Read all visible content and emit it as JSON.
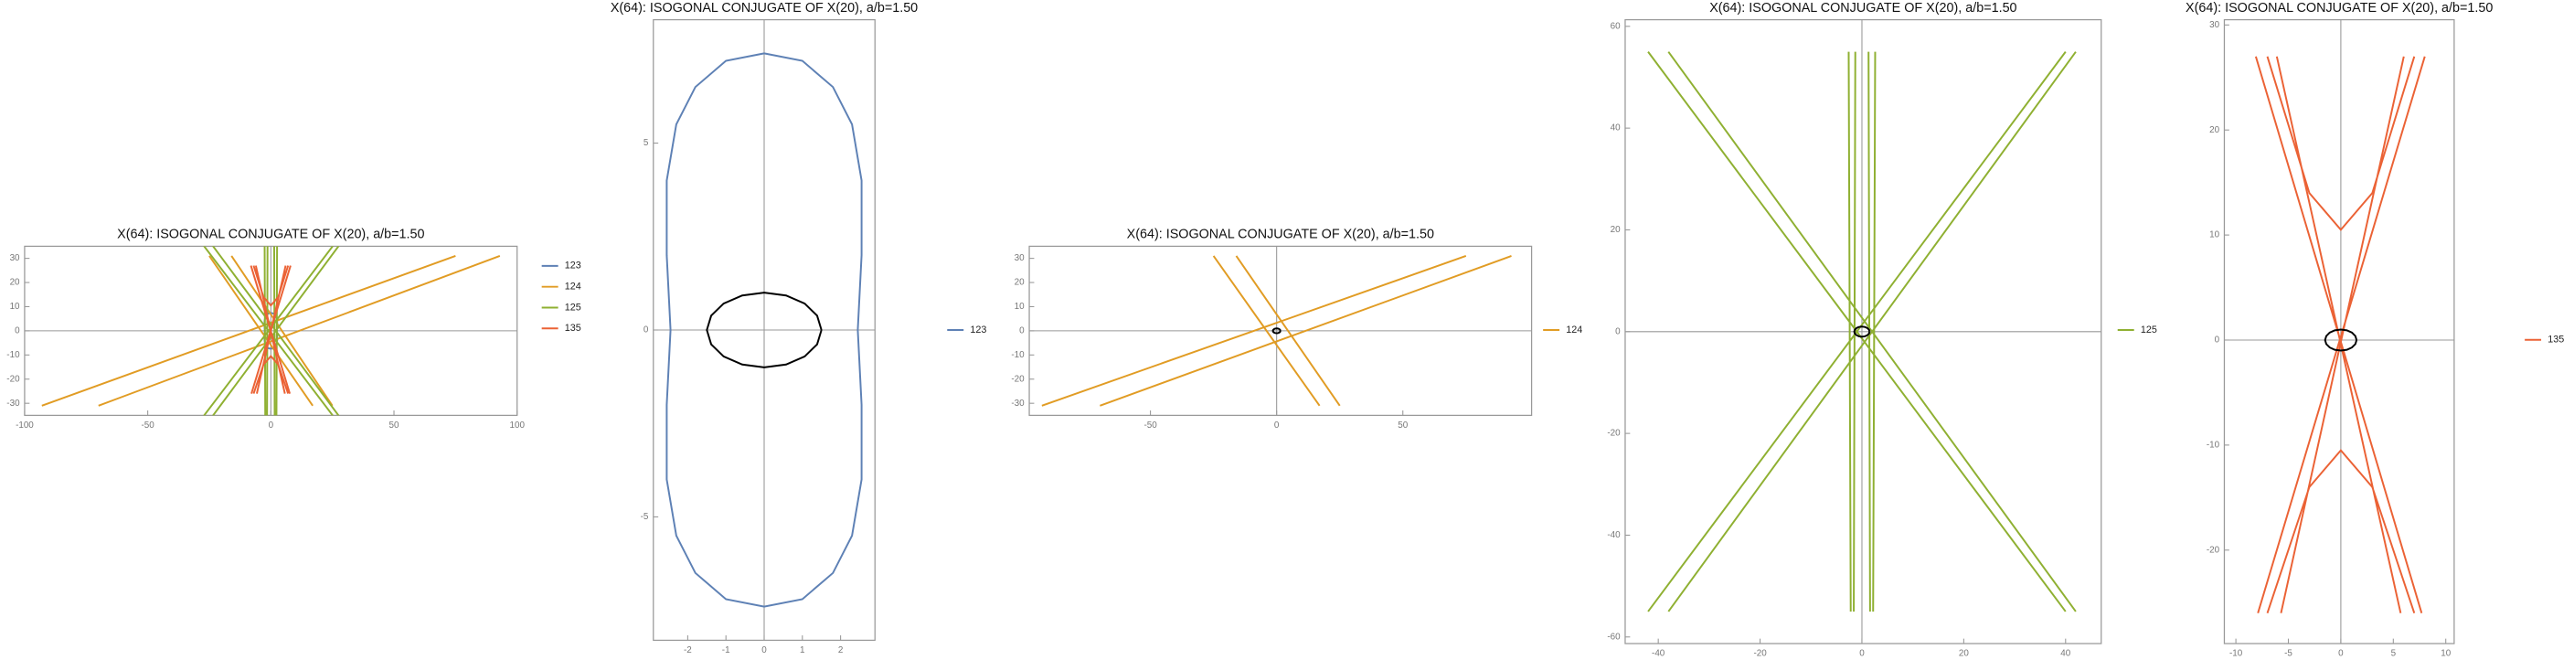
{
  "chart_data": [
    {
      "type": "line",
      "title": "X(64): ISOGONAL CONJUGATE OF X(20), a/b=1.50",
      "xlim": [
        -100,
        100
      ],
      "ylim": [
        -35,
        35
      ],
      "xticks": [
        -100,
        -50,
        0,
        50,
        100
      ],
      "yticks": [
        -30,
        -20,
        -10,
        0,
        10,
        20,
        30
      ],
      "series": [
        {
          "name": "123",
          "color": "#5e81b5",
          "x": [
            0,
            1,
            1.8,
            2.3,
            2.55,
            2.55,
            2.45,
            2.55,
            2.55,
            2.3,
            1.8,
            1,
            0,
            -1,
            -1.8,
            -2.3,
            -2.55,
            -2.55,
            -2.45,
            -2.55,
            -2.55,
            -2.3,
            -1.8,
            -1,
            0
          ],
          "values": [
            7.4,
            7.2,
            6.5,
            5.5,
            4,
            2,
            0,
            -2,
            -4,
            -5.5,
            -6.5,
            -7.2,
            -7.4,
            -7.2,
            -6.5,
            -5.5,
            -4,
            -2,
            0,
            2,
            4,
            5.5,
            6.5,
            7.2,
            7.4
          ]
        },
        {
          "name": "124",
          "color": "#e19c24",
          "x": [
            -93,
            75,
            null,
            -70,
            93,
            null,
            -25,
            17,
            null,
            -16,
            25
          ],
          "values": [
            -31,
            31,
            null,
            -31,
            31,
            null,
            31,
            -31,
            null,
            31,
            -31
          ]
        },
        {
          "name": "125",
          "color": "#8fb032",
          "x": [
            -42,
            40,
            null,
            -38,
            42,
            null,
            -42,
            40,
            null,
            -38,
            42,
            null,
            -2.6,
            -2.2,
            null,
            -1.3,
            -1.6,
            null,
            1.3,
            1.6,
            null,
            2.6,
            2.2
          ],
          "values": [
            55,
            -55,
            null,
            55,
            -55,
            null,
            -55,
            55,
            null,
            -55,
            55,
            null,
            55,
            -55,
            null,
            55,
            -55,
            null,
            55,
            -55,
            null,
            55,
            -55
          ]
        },
        {
          "name": "135",
          "color": "#eb6235",
          "x": [
            -8.1,
            7.7,
            null,
            -6.1,
            5.7,
            null,
            6,
            -5.7,
            null,
            8,
            -7.9,
            null,
            -7,
            -3,
            0,
            3,
            7,
            null,
            -7,
            -3,
            0,
            3,
            7
          ],
          "values": [
            27,
            -26,
            null,
            27,
            -26,
            null,
            27,
            -26,
            null,
            27,
            -26,
            null,
            27,
            14,
            10.5,
            14,
            27,
            null,
            -26,
            -14,
            -10.5,
            -14,
            -26
          ]
        }
      ]
    },
    {
      "type": "line",
      "title": "X(64): ISOGONAL CONJUGATE OF X(20), a/b=1.50",
      "xlim": [
        -2.9,
        2.9
      ],
      "ylim": [
        -8.3,
        8.3
      ],
      "xticks": [
        -2,
        -1,
        0,
        1,
        2
      ],
      "yticks": [
        -5,
        0,
        5
      ],
      "series": [
        {
          "name": "123",
          "color": "#5e81b5",
          "x": [
            0,
            1,
            1.8,
            2.3,
            2.55,
            2.55,
            2.45,
            2.55,
            2.55,
            2.3,
            1.8,
            1,
            0,
            -1,
            -1.8,
            -2.3,
            -2.55,
            -2.55,
            -2.45,
            -2.55,
            -2.55,
            -2.3,
            -1.8,
            -1,
            0
          ],
          "values": [
            7.4,
            7.2,
            6.5,
            5.5,
            4,
            2,
            0,
            -2,
            -4,
            -5.5,
            -6.5,
            -7.2,
            -7.4,
            -7.2,
            -6.5,
            -5.5,
            -4,
            -2,
            0,
            2,
            4,
            5.5,
            6.5,
            7.2,
            7.4
          ]
        },
        {
          "color": "#000000",
          "x": [
            1.5,
            1.386,
            1.061,
            0.574,
            0,
            -0.574,
            -1.061,
            -1.386,
            -1.5,
            -1.386,
            -1.061,
            -0.574,
            0,
            0.574,
            1.061,
            1.386,
            1.5
          ],
          "values": [
            0,
            0.383,
            0.707,
            0.924,
            1,
            0.924,
            0.707,
            0.383,
            0,
            -0.383,
            -0.707,
            -0.924,
            -1,
            -0.924,
            -0.707,
            -0.383,
            0
          ]
        }
      ]
    },
    {
      "type": "line",
      "title": "X(64): ISOGONAL CONJUGATE OF X(20), a/b=1.50",
      "xlim": [
        -98,
        101
      ],
      "ylim": [
        -35,
        35
      ],
      "xticks": [
        -50,
        0,
        50
      ],
      "yticks": [
        -30,
        -20,
        -10,
        0,
        10,
        20,
        30
      ],
      "series": [
        {
          "name": "124",
          "color": "#e19c24",
          "x": [
            -93,
            75,
            null,
            -70,
            93,
            null,
            -25,
            17,
            null,
            -16,
            25
          ],
          "values": [
            -31,
            31,
            null,
            -31,
            31,
            null,
            31,
            -31,
            null,
            31,
            -31
          ]
        },
        {
          "color": "#000000",
          "x": [
            1.5,
            1.386,
            1.061,
            0.574,
            0,
            -0.574,
            -1.061,
            -1.386,
            -1.5,
            -1.386,
            -1.061,
            -0.574,
            0,
            0.574,
            1.061,
            1.386,
            1.5
          ],
          "values": [
            0,
            0.383,
            0.707,
            0.924,
            1,
            0.924,
            0.707,
            0.383,
            0,
            -0.383,
            -0.707,
            -0.924,
            -1,
            -0.924,
            -0.707,
            -0.383,
            0
          ]
        }
      ]
    },
    {
      "type": "line",
      "title": "X(64): ISOGONAL CONJUGATE OF X(20), a/b=1.50",
      "xlim": [
        -46.5,
        47
      ],
      "ylim": [
        -61.3,
        61.3
      ],
      "xticks": [
        -40,
        -20,
        0,
        20,
        40
      ],
      "yticks": [
        -60,
        -40,
        -20,
        0,
        20,
        40,
        60
      ],
      "series": [
        {
          "name": "125",
          "color": "#8fb032",
          "x": [
            -42,
            40,
            null,
            -38,
            42,
            null,
            -42,
            40,
            null,
            -38,
            42,
            null,
            -2.6,
            -2.2,
            null,
            -1.3,
            -1.6,
            null,
            1.3,
            1.6,
            null,
            2.6,
            2.2
          ],
          "values": [
            55,
            -55,
            null,
            55,
            -55,
            null,
            -55,
            55,
            null,
            -55,
            55,
            null,
            55,
            -55,
            null,
            55,
            -55,
            null,
            55,
            -55,
            null,
            55,
            -55
          ]
        },
        {
          "color": "#000000",
          "x": [
            1.5,
            1.386,
            1.061,
            0.574,
            0,
            -0.574,
            -1.061,
            -1.386,
            -1.5,
            -1.386,
            -1.061,
            -0.574,
            0,
            0.574,
            1.061,
            1.386,
            1.5
          ],
          "values": [
            0,
            0.383,
            0.707,
            0.924,
            1,
            0.924,
            0.707,
            0.383,
            0,
            -0.383,
            -0.707,
            -0.924,
            -1,
            -0.924,
            -0.707,
            -0.383,
            0
          ]
        }
      ]
    },
    {
      "type": "line",
      "title": "X(64): ISOGONAL CONJUGATE OF X(20), a/b=1.50",
      "xlim": [
        -11.1,
        10.8
      ],
      "ylim": [
        -28.9,
        30.5
      ],
      "xticks": [
        -10,
        -5,
        0,
        5,
        10
      ],
      "yticks": [
        -20,
        -10,
        0,
        10,
        20,
        30
      ],
      "series": [
        {
          "name": "135",
          "color": "#eb6235",
          "x": [
            -8.1,
            7.7,
            null,
            -6.1,
            5.7,
            null,
            6,
            -5.7,
            null,
            8,
            -7.9,
            null,
            -7,
            -3,
            0,
            3,
            7,
            null,
            -7,
            -3,
            0,
            3,
            7
          ],
          "values": [
            27,
            -26,
            null,
            27,
            -26,
            null,
            27,
            -26,
            null,
            27,
            -26,
            null,
            27,
            14,
            10.5,
            14,
            27,
            null,
            -26,
            -14,
            -10.5,
            -14,
            -26
          ]
        },
        {
          "color": "#000000",
          "x": [
            1.5,
            1.386,
            1.061,
            0.574,
            0,
            -0.574,
            -1.061,
            -1.386,
            -1.5,
            -1.386,
            -1.061,
            -0.574,
            0,
            0.574,
            1.061,
            1.386,
            1.5
          ],
          "values": [
            0,
            0.383,
            0.707,
            0.924,
            1,
            0.924,
            0.707,
            0.383,
            0,
            -0.383,
            -0.707,
            -0.924,
            -1,
            -0.924,
            -0.707,
            -0.383,
            0
          ]
        }
      ]
    }
  ]
}
